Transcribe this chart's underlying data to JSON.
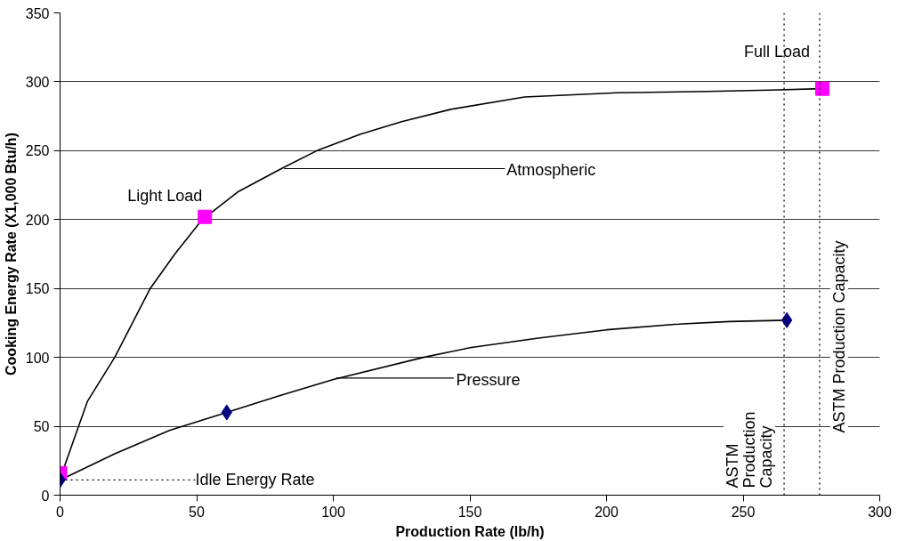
{
  "chart_data": {
    "type": "line",
    "xlabel": "Production Rate (lb/h)",
    "ylabel": "Cooking Energy Rate (X1,000 Btu/h)",
    "xlim": [
      0,
      300
    ],
    "xticks": [
      0,
      50,
      100,
      150,
      200,
      250,
      300
    ],
    "ylim": [
      0,
      350
    ],
    "yticks": [
      0,
      50,
      100,
      150,
      200,
      250,
      300,
      350
    ],
    "grid": "y",
    "series": [
      {
        "color": "#000000",
        "marker": "none",
        "x": [
          0,
          5,
          10,
          20,
          33,
          42,
          52,
          65,
          81,
          94,
          110,
          125,
          143,
          170,
          204,
          237,
          260,
          279
        ],
        "values": [
          12,
          40,
          68,
          100,
          150,
          175,
          200,
          220,
          237,
          250,
          262,
          271,
          280,
          289,
          292,
          293,
          294,
          295
        ]
      },
      {
        "color": "#000000",
        "marker": "none",
        "x": [
          0,
          20,
          40,
          61,
          80,
          100,
          133,
          150,
          175,
          200,
          225,
          245,
          266
        ],
        "values": [
          11,
          30,
          47,
          60,
          72,
          84,
          100,
          107,
          114,
          120,
          124,
          126,
          127
        ]
      },
      {
        "type": "scatter",
        "color": "#ff00ff",
        "marker": "square",
        "x": [
          0,
          53,
          279
        ],
        "values": [
          16,
          202,
          295
        ]
      },
      {
        "type": "scatter",
        "color": "#000080",
        "marker": "diamond",
        "x": [
          0,
          61,
          266
        ],
        "values": [
          11,
          60,
          127
        ]
      }
    ],
    "ref_lines": [
      {
        "axis": "x",
        "value": 265,
        "label": "ASTM\nProduction\nCapacity",
        "line_style": "dotted"
      },
      {
        "axis": "x",
        "value": 278,
        "label": "ASTM Production Capacity",
        "line_style": "dotted"
      }
    ],
    "annotations": [
      {
        "text": "Light Load",
        "x": 53,
        "y": 202
      },
      {
        "text": "Full Load",
        "x": 279,
        "y": 295
      },
      {
        "text": "Idle Energy Rate",
        "x": 0,
        "y": 11
      },
      {
        "text": "Atmospheric",
        "x": 82,
        "y": 237
      },
      {
        "text": "Pressure",
        "x": 101,
        "y": 85
      }
    ]
  }
}
